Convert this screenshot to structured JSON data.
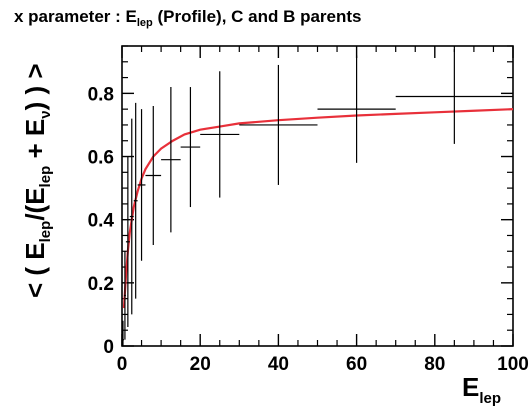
{
  "chart_data": {
    "type": "scatter",
    "title": {
      "main": "x parameter : E",
      "sub": "lep",
      "rest": " (Profile), C and B parents"
    },
    "xlabel": {
      "main": "E",
      "sub": "lep"
    },
    "ylabel": {
      "p1": "< ( E",
      "s1": "lep",
      "p2": "/(E",
      "s2": "lep",
      "p3": " + E",
      "s3": "ν",
      "p4": ") ) >"
    },
    "xlim": [
      0,
      100
    ],
    "ylim": [
      0,
      0.95
    ],
    "x_ticks": [
      {
        "value": 0,
        "label": "0"
      },
      {
        "value": 20,
        "label": "20"
      },
      {
        "value": 40,
        "label": "40"
      },
      {
        "value": 60,
        "label": "60"
      },
      {
        "value": 80,
        "label": "80"
      },
      {
        "value": 100,
        "label": "100"
      }
    ],
    "y_ticks": [
      {
        "value": 0,
        "label": "0"
      },
      {
        "value": 0.2,
        "label": "0.2"
      },
      {
        "value": 0.4,
        "label": "0.4"
      },
      {
        "value": 0.6,
        "label": "0.6"
      },
      {
        "value": 0.8,
        "label": "0.8"
      }
    ],
    "grid": false,
    "series": [
      {
        "kind": "profile-points",
        "color": "#000000",
        "points": [
          {
            "x": 0.25,
            "xerr": 0.25,
            "y": 0.02,
            "yerr": 0.06
          },
          {
            "x": 0.75,
            "xerr": 0.25,
            "y": 0.16,
            "yerr": 0.14
          },
          {
            "x": 1.5,
            "xerr": 0.5,
            "y": 0.33,
            "yerr": 0.27
          },
          {
            "x": 2.5,
            "xerr": 0.5,
            "y": 0.41,
            "yerr": 0.31
          },
          {
            "x": 3.5,
            "xerr": 0.5,
            "y": 0.46,
            "yerr": 0.31
          },
          {
            "x": 5.0,
            "xerr": 1.0,
            "y": 0.51,
            "yerr": 0.24
          },
          {
            "x": 8.0,
            "xerr": 2.0,
            "y": 0.54,
            "yerr": 0.22
          },
          {
            "x": 12.5,
            "xerr": 2.5,
            "y": 0.59,
            "yerr": 0.23
          },
          {
            "x": 17.5,
            "xerr": 2.5,
            "y": 0.63,
            "yerr": 0.19
          },
          {
            "x": 25.0,
            "xerr": 5.0,
            "y": 0.67,
            "yerr": 0.2
          },
          {
            "x": 40.0,
            "xerr": 10.0,
            "y": 0.7,
            "yerr": 0.19
          },
          {
            "x": 60.0,
            "xerr": 10.0,
            "y": 0.75,
            "yerr": 0.17
          },
          {
            "x": 85.0,
            "xerr": 15.0,
            "y": 0.79,
            "yerr": 0.15
          }
        ]
      },
      {
        "kind": "fit-curve",
        "color": "#e8303a",
        "points": [
          {
            "x": 0.5,
            "y": 0.12
          },
          {
            "x": 1,
            "y": 0.22
          },
          {
            "x": 1.5,
            "y": 0.3
          },
          {
            "x": 2,
            "y": 0.36
          },
          {
            "x": 3,
            "y": 0.44
          },
          {
            "x": 4,
            "y": 0.49
          },
          {
            "x": 5,
            "y": 0.53
          },
          {
            "x": 6,
            "y": 0.56
          },
          {
            "x": 8,
            "y": 0.6
          },
          {
            "x": 10,
            "y": 0.625
          },
          {
            "x": 13,
            "y": 0.65
          },
          {
            "x": 16,
            "y": 0.67
          },
          {
            "x": 20,
            "y": 0.685
          },
          {
            "x": 25,
            "y": 0.695
          },
          {
            "x": 30,
            "y": 0.705
          },
          {
            "x": 40,
            "y": 0.715
          },
          {
            "x": 50,
            "y": 0.723
          },
          {
            "x": 60,
            "y": 0.73
          },
          {
            "x": 70,
            "y": 0.735
          },
          {
            "x": 80,
            "y": 0.74
          },
          {
            "x": 90,
            "y": 0.745
          },
          {
            "x": 100,
            "y": 0.75
          }
        ]
      }
    ]
  }
}
